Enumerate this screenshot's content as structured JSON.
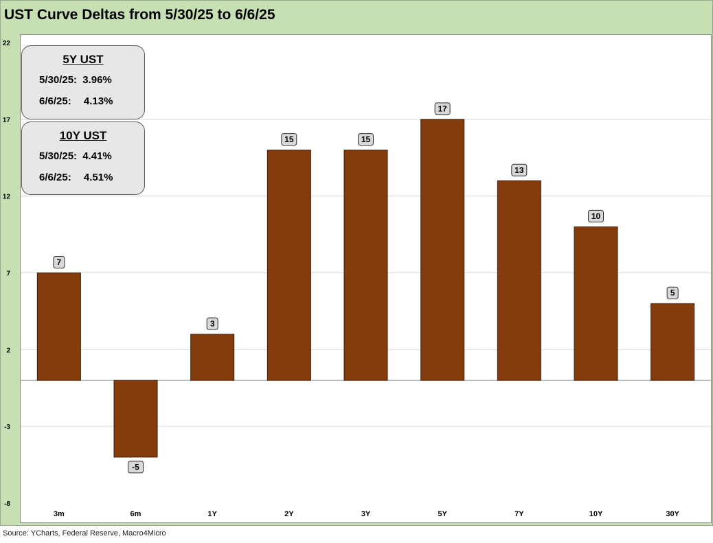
{
  "title": "UST Curve Deltas from 5/30/25 to 6/6/25",
  "source": "Source: YCharts, Federal Reserve, Macro4Micro",
  "colors": {
    "bar": "#843c0c",
    "frame": "#c6e0b4",
    "label_box": "#d9d9d9",
    "grid": "#d9d9d9"
  },
  "info_boxes": {
    "five_year": {
      "title": "5Y UST",
      "rows": [
        {
          "date": "5/30/25:",
          "value": "3.96%"
        },
        {
          "date": "6/6/25:",
          "value": "4.13%"
        }
      ]
    },
    "ten_year": {
      "title": "10Y UST",
      "rows": [
        {
          "date": "5/30/25:",
          "value": "4.41%"
        },
        {
          "date": "6/6/25:",
          "value": "4.51%"
        }
      ]
    }
  },
  "chart_data": {
    "type": "bar",
    "title": "UST Curve Deltas from 5/30/25 to 6/6/25",
    "categories": [
      "3m",
      "6m",
      "1Y",
      "2Y",
      "3Y",
      "5Y",
      "7Y",
      "10Y",
      "30Y"
    ],
    "values": [
      7,
      -5,
      3,
      15,
      15,
      17,
      13,
      10,
      5
    ],
    "data_labels": [
      "7",
      "-5",
      "3",
      "15",
      "15",
      "17",
      "13",
      "10",
      "5"
    ],
    "yticks": [
      22,
      17,
      12,
      7,
      2,
      -3,
      -8
    ],
    "ytick_labels": [
      "22",
      "17",
      "12",
      "7",
      "2",
      "-3",
      "-8"
    ],
    "ylim": [
      -8,
      22
    ],
    "xlabel": "",
    "ylabel": "",
    "grid": true,
    "legend": "none"
  }
}
